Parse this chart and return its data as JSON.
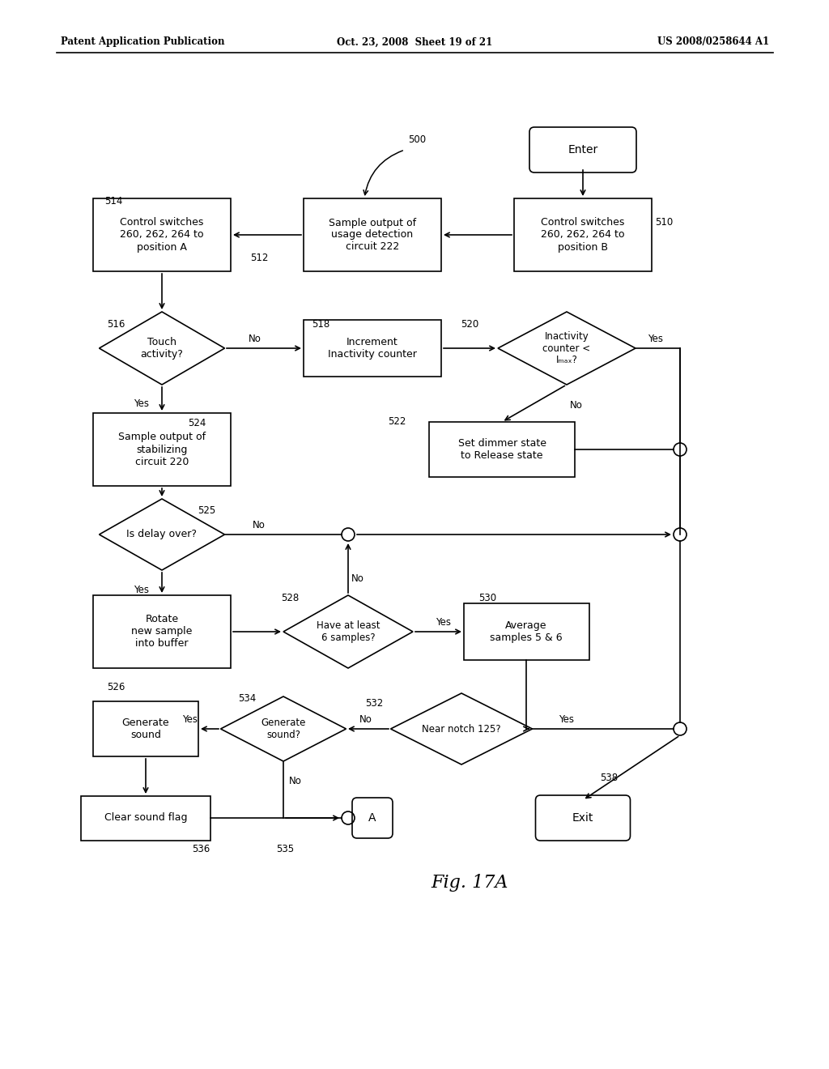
{
  "bg_color": "#ffffff",
  "header_left": "Patent Application Publication",
  "header_mid": "Oct. 23, 2008  Sheet 19 of 21",
  "header_right": "US 2008/0258644 A1",
  "fig_label": "Fig. 17A"
}
